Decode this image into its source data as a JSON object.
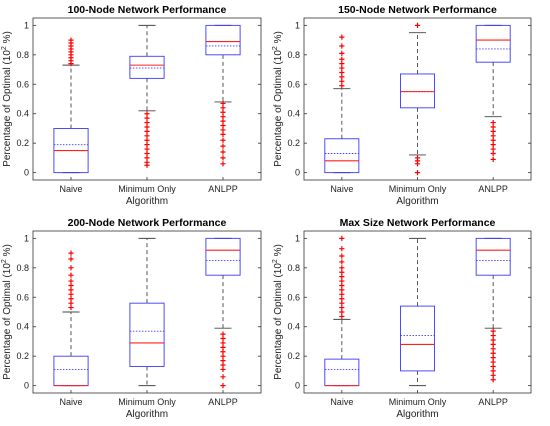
{
  "chart_data": [
    {
      "type": "boxplot",
      "title": "100-Node Network Performance",
      "xlabel": "Algorithm",
      "ylabel_main": "Percentage of Optimal (10",
      "ylabel_exp": "2",
      "ylabel_tail": " %)",
      "ylim": [
        0,
        1
      ],
      "yticks": [
        "0",
        "0.2",
        "0.4",
        "0.6",
        "0.8",
        "1"
      ],
      "categories": [
        "Naive",
        "Minimum Only",
        "ANLPP"
      ],
      "boxes": [
        {
          "whisker_low": 0.0,
          "q1": 0.0,
          "median": 0.15,
          "mean": 0.19,
          "q3": 0.3,
          "whisker_high": 0.73,
          "outliers": [
            0.74,
            0.76,
            0.78,
            0.8,
            0.82,
            0.84,
            0.86,
            0.88,
            0.9
          ]
        },
        {
          "whisker_low": 0.42,
          "q1": 0.64,
          "median": 0.73,
          "mean": 0.71,
          "q3": 0.79,
          "whisker_high": 1.0,
          "outliers": [
            0.4,
            0.37,
            0.34,
            0.31,
            0.28,
            0.25,
            0.22,
            0.19,
            0.16,
            0.13,
            0.1,
            0.07,
            0.05
          ]
        },
        {
          "whisker_low": 0.48,
          "q1": 0.8,
          "median": 0.89,
          "mean": 0.86,
          "q3": 1.0,
          "whisker_high": 1.0,
          "outliers": [
            0.47,
            0.44,
            0.41,
            0.38,
            0.35,
            0.32,
            0.29,
            0.26,
            0.22,
            0.18,
            0.14,
            0.1,
            0.06
          ]
        }
      ]
    },
    {
      "type": "boxplot",
      "title": "150-Node Network Performance",
      "xlabel": "Algorithm",
      "ylabel_main": "Percentage of Optimal (10",
      "ylabel_exp": "2",
      "ylabel_tail": " %)",
      "ylim": [
        0,
        1
      ],
      "yticks": [
        "0",
        "0.2",
        "0.4",
        "0.6",
        "0.8",
        "1"
      ],
      "categories": [
        "Naive",
        "Minimum Only",
        "ANLPP"
      ],
      "boxes": [
        {
          "whisker_low": 0.0,
          "q1": 0.0,
          "median": 0.08,
          "mean": 0.13,
          "q3": 0.23,
          "whisker_high": 0.57,
          "outliers": [
            0.59,
            0.62,
            0.65,
            0.68,
            0.71,
            0.74,
            0.77,
            0.81,
            0.86,
            0.92
          ]
        },
        {
          "whisker_low": 0.12,
          "q1": 0.44,
          "median": 0.55,
          "mean": 0.55,
          "q3": 0.67,
          "whisker_high": 0.95,
          "outliers": [
            1.0,
            0.1,
            0.08,
            0.06,
            0.0
          ]
        },
        {
          "whisker_low": 0.38,
          "q1": 0.75,
          "median": 0.9,
          "mean": 0.84,
          "q3": 1.0,
          "whisker_high": 1.0,
          "outliers": [
            0.34,
            0.31,
            0.28,
            0.25,
            0.22,
            0.19,
            0.16,
            0.13,
            0.09
          ]
        }
      ]
    },
    {
      "type": "boxplot",
      "title": "200-Node Network Performance",
      "xlabel": "Algorithm",
      "ylabel_main": "Percentage of Optimal (10",
      "ylabel_exp": "2",
      "ylabel_tail": " %)",
      "ylim": [
        0,
        1
      ],
      "yticks": [
        "0",
        "0.2",
        "0.4",
        "0.6",
        "0.8",
        "1"
      ],
      "categories": [
        "Naive",
        "Minimum Only",
        "ANLPP"
      ],
      "boxes": [
        {
          "whisker_low": 0.0,
          "q1": 0.0,
          "median": 0.0,
          "mean": 0.11,
          "q3": 0.2,
          "whisker_high": 0.5,
          "outliers": [
            0.53,
            0.56,
            0.59,
            0.62,
            0.65,
            0.68,
            0.71,
            0.75,
            0.8,
            0.86,
            0.9
          ]
        },
        {
          "whisker_low": 0.0,
          "q1": 0.13,
          "median": 0.29,
          "mean": 0.37,
          "q3": 0.56,
          "whisker_high": 1.0,
          "outliers": []
        },
        {
          "whisker_low": 0.39,
          "q1": 0.75,
          "median": 0.92,
          "mean": 0.85,
          "q3": 1.0,
          "whisker_high": 1.0,
          "outliers": [
            0.35,
            0.32,
            0.29,
            0.26,
            0.23,
            0.2,
            0.17,
            0.14,
            0.11,
            0.06,
            0.0
          ]
        }
      ]
    },
    {
      "type": "boxplot",
      "title": "Max Size Network Performance",
      "xlabel": "Algorithm",
      "ylabel_main": "Percentage of Optimal (10",
      "ylabel_exp": "2",
      "ylabel_tail": " %)",
      "ylim": [
        0,
        1
      ],
      "yticks": [
        "0",
        "0.2",
        "0.4",
        "0.6",
        "0.8",
        "1"
      ],
      "categories": [
        "Naive",
        "Minimum Only",
        "ANLPP"
      ],
      "boxes": [
        {
          "whisker_low": 0.0,
          "q1": 0.0,
          "median": 0.0,
          "mean": 0.11,
          "q3": 0.18,
          "whisker_high": 0.45,
          "outliers": [
            0.47,
            0.5,
            0.53,
            0.56,
            0.59,
            0.62,
            0.65,
            0.68,
            0.71,
            0.74,
            0.77,
            0.8,
            0.84,
            0.88,
            0.93,
            1.0
          ]
        },
        {
          "whisker_low": 0.0,
          "q1": 0.1,
          "median": 0.28,
          "mean": 0.34,
          "q3": 0.54,
          "whisker_high": 1.0,
          "outliers": []
        },
        {
          "whisker_low": 0.39,
          "q1": 0.75,
          "median": 0.92,
          "mean": 0.85,
          "q3": 1.0,
          "whisker_high": 1.0,
          "outliers": [
            0.37,
            0.34,
            0.31,
            0.28,
            0.25,
            0.22,
            0.19,
            0.16,
            0.13,
            0.1,
            0.07,
            0.04
          ]
        }
      ]
    }
  ],
  "colors": {
    "box": "#3a3aff",
    "median": "#ff2020",
    "mean": "#3a3aff",
    "whisker": "#444444",
    "outlier": "#ff0000",
    "axis": "#333333"
  }
}
